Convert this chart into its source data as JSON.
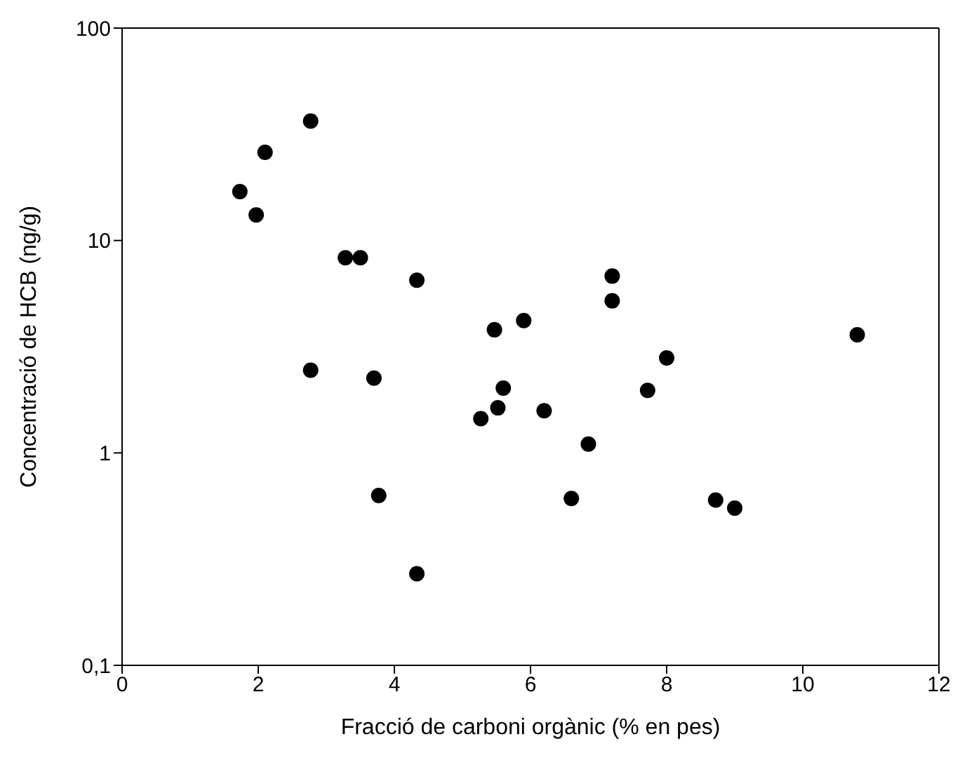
{
  "chart_data": {
    "type": "scatter",
    "xlabel": "Fracció de carboni orgànic (% en pes)",
    "ylabel": "Concentració de HCB (ng/g)",
    "log": "y",
    "marker": "circle",
    "xlim": [
      0,
      12
    ],
    "xticks": [
      0,
      2,
      4,
      6,
      8,
      10,
      12
    ],
    "ylim": [
      0.1,
      100
    ],
    "yticks": [
      {
        "value": 0.1,
        "label": "0,1"
      },
      1,
      10,
      100
    ],
    "series": [
      {
        "color": "#000000",
        "x": [
          1.73,
          1.97,
          2.1,
          2.77,
          2.77,
          3.28,
          3.5,
          3.7,
          3.77,
          4.33,
          4.33,
          5.27,
          5.47,
          5.52,
          5.6,
          5.9,
          6.2,
          6.6,
          6.85,
          7.2,
          7.2,
          7.72,
          8.0,
          8.72,
          9.0,
          10.8
        ],
        "values": [
          17,
          13.2,
          26,
          36.5,
          2.45,
          8.3,
          8.3,
          2.25,
          0.63,
          6.5,
          0.27,
          1.45,
          3.8,
          1.63,
          2.02,
          4.2,
          1.58,
          0.61,
          1.1,
          6.8,
          5.2,
          1.97,
          2.8,
          0.6,
          0.55,
          3.6
        ]
      }
    ]
  }
}
